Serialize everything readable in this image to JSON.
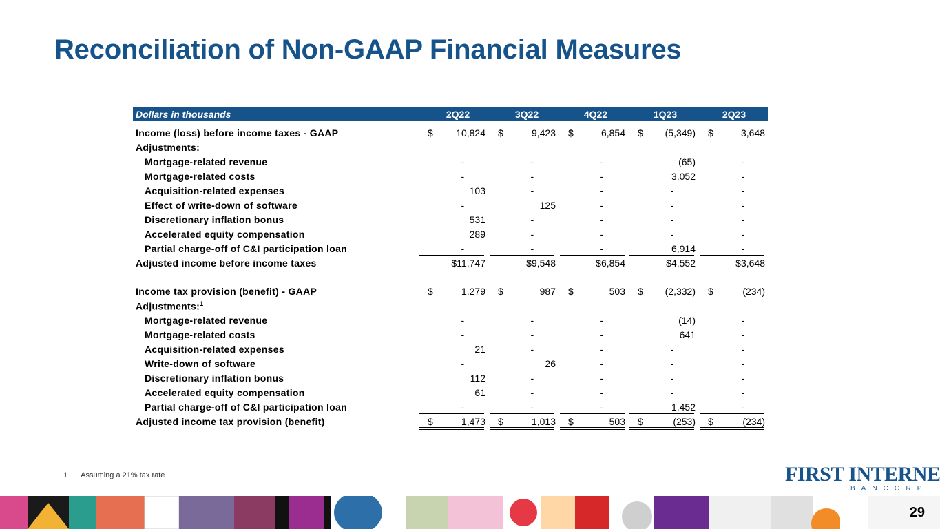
{
  "title": "Reconciliation of Non-GAAP Financial Measures",
  "table": {
    "header_label": "Dollars in thousands",
    "periods": [
      "2Q22",
      "3Q22",
      "4Q22",
      "1Q23",
      "2Q23"
    ],
    "section1": {
      "income_gaap": {
        "label": "Income (loss) before income taxes - GAAP",
        "values": [
          "10,824",
          "9,423",
          "6,854",
          "(5,349)",
          "3,648"
        ]
      },
      "adjustments_label": "Adjustments:",
      "items": [
        {
          "label": "Mortgage-related revenue",
          "values": [
            "-",
            "-",
            "-",
            "(65)",
            "-"
          ]
        },
        {
          "label": "Mortgage-related costs",
          "values": [
            "-",
            "-",
            "-",
            "3,052",
            "-"
          ]
        },
        {
          "label": "Acquisition-related expenses",
          "values": [
            "103",
            "-",
            "-",
            "-",
            "-"
          ]
        },
        {
          "label": "Effect of write-down of software",
          "values": [
            "-",
            "125",
            "-",
            "-",
            "-"
          ]
        },
        {
          "label": "Discretionary inflation bonus",
          "values": [
            "531",
            "-",
            "-",
            "-",
            "-"
          ]
        },
        {
          "label": "Accelerated equity compensation",
          "values": [
            "289",
            "-",
            "-",
            "-",
            "-"
          ]
        },
        {
          "label": "Partial charge-off of C&I participation loan",
          "values": [
            "-",
            "-",
            "-",
            "6,914",
            "-"
          ]
        }
      ],
      "adjusted": {
        "label": "Adjusted income before income taxes",
        "values": [
          "$11,747",
          "$9,548",
          "$6,854",
          "$4,552",
          "$3,648"
        ]
      }
    },
    "section2": {
      "tax_gaap": {
        "label": "Income tax provision (benefit) - GAAP",
        "values": [
          "1,279",
          "987",
          "503",
          "(2,332)",
          "(234)"
        ]
      },
      "adjustments_label": "Adjustments:",
      "adjustments_sup": "1",
      "items": [
        {
          "label": "Mortgage-related revenue",
          "values": [
            "-",
            "-",
            "-",
            "(14)",
            "-"
          ]
        },
        {
          "label": "Mortgage-related costs",
          "values": [
            "-",
            "-",
            "-",
            "641",
            "-"
          ]
        },
        {
          "label": "Acquisition-related expenses",
          "values": [
            "21",
            "-",
            "-",
            "-",
            "-"
          ]
        },
        {
          "label": "Write-down of software",
          "values": [
            "-",
            "26",
            "-",
            "-",
            "-"
          ]
        },
        {
          "label": "Discretionary inflation bonus",
          "values": [
            "112",
            "-",
            "-",
            "-",
            "-"
          ]
        },
        {
          "label": "Accelerated equity compensation",
          "values": [
            "61",
            "-",
            "-",
            "-",
            "-"
          ]
        },
        {
          "label": "Partial charge-off of C&I participation loan",
          "values": [
            "-",
            "-",
            "-",
            "1,452",
            "-"
          ]
        }
      ],
      "adjusted": {
        "label": "Adjusted income tax provision (benefit)",
        "values": [
          "1,473",
          "1,013",
          "503",
          "(253)",
          "(234)"
        ]
      }
    },
    "currency_symbol": "$"
  },
  "footnote": {
    "number": "1",
    "text": "Assuming a 21% tax rate"
  },
  "logo": {
    "main": "FIRST INTERNET",
    "sub": "BANCORP"
  },
  "page_number": "29",
  "colors": {
    "brand_blue": "#16538a"
  }
}
